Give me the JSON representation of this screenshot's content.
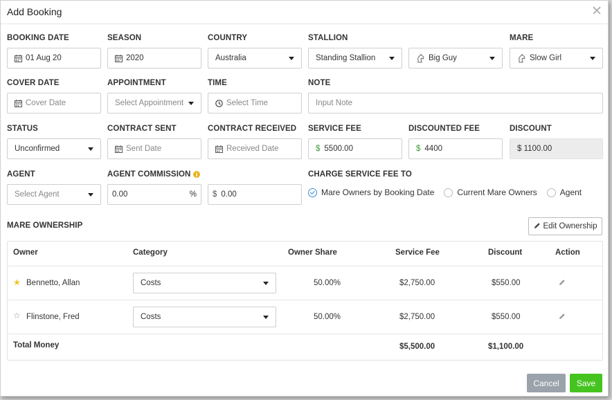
{
  "dialog": {
    "title": "Add Booking",
    "close": "✕"
  },
  "fields": {
    "booking_date": {
      "label": "BOOKING DATE",
      "value": "01 Aug 20"
    },
    "season": {
      "label": "SEASON",
      "value": "2020"
    },
    "country": {
      "label": "COUNTRY",
      "value": "Australia"
    },
    "stallion": {
      "label": "STALLION",
      "value": "Standing Stallion",
      "horse": "Big Guy"
    },
    "mare": {
      "label": "MARE",
      "value": "Slow Girl"
    },
    "cover_date": {
      "label": "COVER DATE",
      "placeholder": "Cover Date"
    },
    "appointment": {
      "label": "APPOINTMENT",
      "placeholder": "Select Appointment"
    },
    "time": {
      "label": "TIME",
      "placeholder": "Select Time"
    },
    "note": {
      "label": "NOTE",
      "placeholder": "Input Note"
    },
    "status": {
      "label": "STATUS",
      "value": "Unconfirmed"
    },
    "contract_sent": {
      "label": "CONTRACT SENT",
      "placeholder": "Sent Date"
    },
    "contract_received": {
      "label": "CONTRACT RECEIVED",
      "placeholder": "Received Date"
    },
    "service_fee": {
      "label": "SERVICE FEE",
      "currency": "$",
      "value": "5500.00"
    },
    "discounted_fee": {
      "label": "DISCOUNTED FEE",
      "currency": "$",
      "value": "4400"
    },
    "discount": {
      "label": "DISCOUNT",
      "value": "$ 1100.00"
    },
    "agent": {
      "label": "AGENT",
      "placeholder": "Select Agent"
    },
    "agent_commission": {
      "label": "AGENT COMMISSION",
      "value": "0.00",
      "unit": "%",
      "amount_currency": "$",
      "amount": "0.00"
    },
    "charge_service_fee_to": {
      "label": "CHARGE SERVICE FEE TO",
      "options": [
        "Mare Owners by Booking Date",
        "Current Mare Owners",
        "Agent"
      ],
      "selected": "Mare Owners by Booking Date"
    }
  },
  "ownership": {
    "label": "MARE OWNERSHIP",
    "edit_button": "Edit Ownership",
    "columns": [
      "Owner",
      "Category",
      "Owner Share",
      "Service Fee",
      "Discount",
      "Action"
    ],
    "rows": [
      {
        "owner": "Bennetto, Allan",
        "primary": true,
        "category": "Costs",
        "share": "50.00%",
        "service_fee": "$2,750.00",
        "discount": "$550.00"
      },
      {
        "owner": "Flinstone, Fred",
        "primary": false,
        "category": "Costs",
        "share": "50.00%",
        "service_fee": "$2,750.00",
        "discount": "$550.00"
      }
    ],
    "total": {
      "label": "Total Money",
      "service_fee": "$5,500.00",
      "discount": "$1,100.00"
    }
  },
  "footer": {
    "cancel": "Cancel",
    "save": "Save"
  },
  "colors": {
    "save": "#45c41f",
    "cancel": "#9aa3ab",
    "accent": "#3a8fd0",
    "star": "#f0c419"
  }
}
